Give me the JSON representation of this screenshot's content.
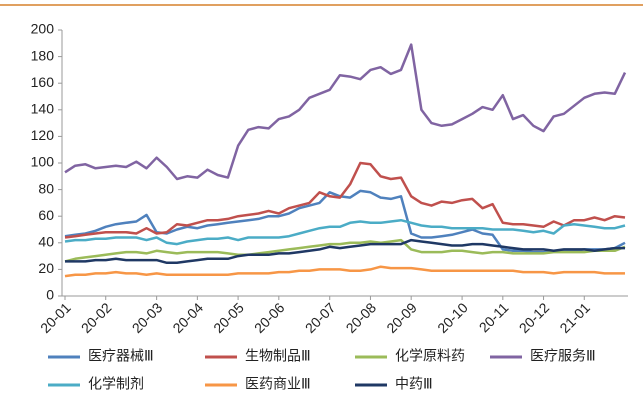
{
  "chart_data": {
    "type": "line",
    "categories": [
      "20-01",
      null,
      null,
      null,
      "20-02",
      null,
      null,
      null,
      null,
      "20-03",
      null,
      null,
      null,
      "20-04",
      null,
      null,
      null,
      "20-05",
      null,
      null,
      null,
      "20-06",
      null,
      null,
      null,
      null,
      "20-07",
      null,
      null,
      null,
      "20-08",
      null,
      null,
      null,
      "20-09",
      null,
      null,
      null,
      null,
      "20-10",
      null,
      null,
      null,
      "20-11",
      null,
      null,
      null,
      "20-12",
      null,
      null,
      null,
      "21-01",
      null,
      null,
      null,
      null
    ],
    "ylim": [
      0,
      200
    ],
    "yticks": [
      0,
      20,
      40,
      60,
      80,
      100,
      120,
      140,
      160,
      180,
      200
    ],
    "grid": false,
    "series": [
      {
        "name": "医疗器械Ⅲ",
        "color": "#4f81bd",
        "values": [
          45,
          46,
          47,
          49,
          52,
          54,
          55,
          56,
          61,
          48,
          47,
          50,
          52,
          51,
          53,
          54,
          55,
          56,
          57,
          58,
          60,
          60,
          62,
          66,
          68,
          70,
          78,
          75,
          74,
          79,
          78,
          74,
          73,
          75,
          47,
          44,
          44,
          45,
          46,
          48,
          50,
          47,
          46,
          35,
          34,
          34,
          33,
          33,
          34,
          34,
          34,
          35,
          35,
          35,
          36,
          40
        ]
      },
      {
        "name": "生物制品Ⅲ",
        "color": "#c0504d",
        "values": [
          44,
          45,
          46,
          47,
          48,
          48,
          48,
          47,
          51,
          47,
          48,
          54,
          53,
          55,
          57,
          57,
          58,
          60,
          61,
          62,
          64,
          62,
          66,
          68,
          70,
          78,
          75,
          74,
          84,
          100,
          99,
          90,
          88,
          89,
          75,
          70,
          68,
          71,
          70,
          72,
          73,
          66,
          69,
          55,
          54,
          54,
          53,
          52,
          56,
          53,
          57,
          57,
          59,
          57,
          60,
          59
        ]
      },
      {
        "name": "化学原料药",
        "color": "#9bbb59",
        "values": [
          26,
          28,
          29,
          30,
          31,
          32,
          33,
          33,
          32,
          34,
          33,
          32,
          33,
          33,
          33,
          33,
          32,
          31,
          31,
          32,
          33,
          34,
          35,
          36,
          37,
          38,
          39,
          39,
          40,
          40,
          41,
          40,
          41,
          42,
          35,
          33,
          33,
          33,
          34,
          34,
          33,
          32,
          33,
          33,
          32,
          32,
          32,
          32,
          33,
          33,
          33,
          33,
          34,
          34,
          34,
          37
        ]
      },
      {
        "name": "医疗服务Ⅲ",
        "color": "#8064a2",
        "values": [
          93,
          98,
          99,
          96,
          97,
          98,
          97,
          101,
          96,
          104,
          97,
          88,
          90,
          89,
          95,
          91,
          89,
          113,
          125,
          127,
          126,
          133,
          135,
          140,
          149,
          152,
          155,
          166,
          165,
          163,
          170,
          172,
          167,
          170,
          189,
          140,
          130,
          128,
          129,
          133,
          137,
          142,
          140,
          151,
          133,
          136,
          128,
          124,
          135,
          137,
          143,
          149,
          152,
          153,
          152,
          168
        ]
      },
      {
        "name": "化学制剂",
        "color": "#4bacc6",
        "values": [
          41,
          42,
          42,
          43,
          43,
          44,
          44,
          44,
          42,
          44,
          40,
          39,
          41,
          42,
          43,
          43,
          44,
          42,
          44,
          44,
          44,
          44,
          45,
          47,
          49,
          51,
          52,
          52,
          55,
          56,
          55,
          55,
          56,
          57,
          55,
          53,
          52,
          52,
          51,
          51,
          51,
          51,
          50,
          50,
          50,
          49,
          48,
          49,
          47,
          53,
          54,
          53,
          52,
          51,
          51,
          53
        ]
      },
      {
        "name": "医药商业Ⅲ",
        "color": "#f79646",
        "values": [
          15,
          16,
          16,
          17,
          17,
          18,
          17,
          17,
          16,
          17,
          16,
          16,
          16,
          16,
          16,
          16,
          16,
          17,
          17,
          17,
          17,
          18,
          18,
          19,
          19,
          20,
          20,
          20,
          19,
          19,
          20,
          22,
          21,
          21,
          21,
          20,
          19,
          19,
          19,
          19,
          19,
          19,
          19,
          19,
          19,
          18,
          18,
          18,
          17,
          18,
          18,
          18,
          18,
          17,
          17,
          17
        ]
      },
      {
        "name": "中药Ⅲ",
        "color": "#1f3864",
        "values": [
          26,
          26,
          26,
          27,
          27,
          28,
          27,
          27,
          27,
          27,
          25,
          25,
          26,
          27,
          28,
          28,
          28,
          30,
          31,
          31,
          31,
          32,
          32,
          33,
          34,
          35,
          37,
          36,
          37,
          38,
          39,
          39,
          39,
          39,
          42,
          41,
          40,
          39,
          38,
          38,
          39,
          39,
          38,
          37,
          36,
          35,
          35,
          35,
          34,
          35,
          35,
          35,
          34,
          35,
          36,
          36
        ]
      }
    ]
  }
}
